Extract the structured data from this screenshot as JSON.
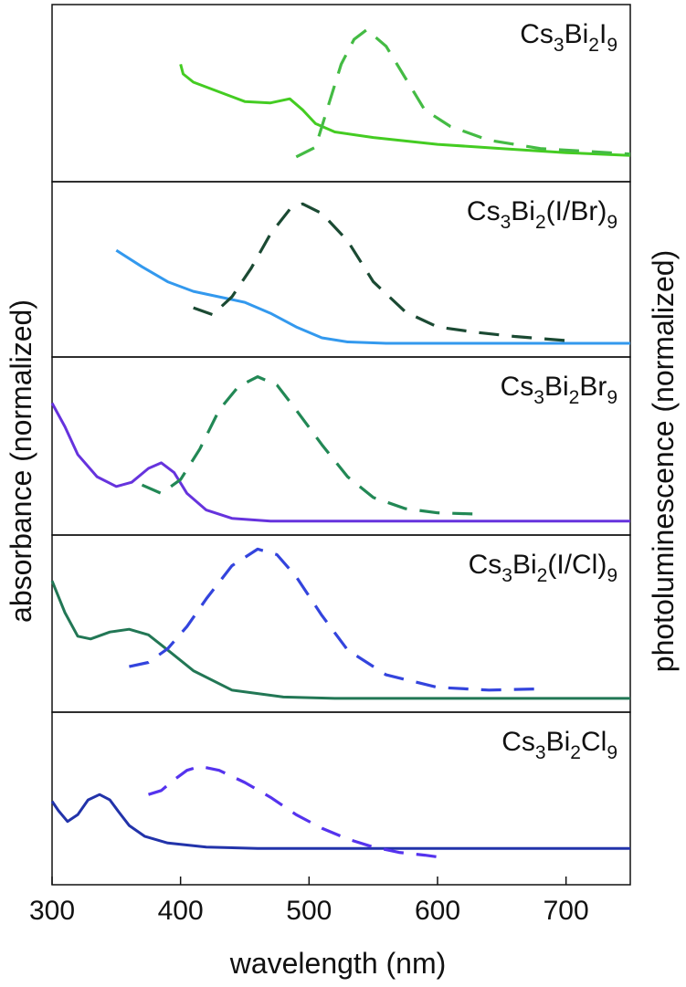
{
  "chart_data": {
    "type": "line",
    "xlabel": "wavelength (nm)",
    "ylabel_left": "absorbance (normalized)",
    "ylabel_right": "photoluminescence (normalized)",
    "xlim": [
      300,
      750
    ],
    "xticks": [
      300,
      400,
      500,
      600,
      700
    ],
    "tick_labels": [
      "300",
      "400",
      "500",
      "600",
      "700"
    ],
    "panels": [
      {
        "label": {
          "base1": "Cs",
          "sub1": "3",
          "base2": "Bi",
          "sub2": "2",
          "base3": "I",
          "sub3": "9",
          "base4": ""
        },
        "absorbance": {
          "color": "#44cc22",
          "x": [
            400,
            402,
            410,
            430,
            450,
            470,
            485,
            495,
            505,
            520,
            550,
            600,
            650,
            700,
            750
          ],
          "y": [
            0.85,
            0.78,
            0.72,
            0.65,
            0.58,
            0.57,
            0.6,
            0.52,
            0.42,
            0.36,
            0.32,
            0.27,
            0.24,
            0.21,
            0.19
          ]
        },
        "pl": {
          "color": "#44bb44",
          "x": [
            490,
            505,
            515,
            525,
            535,
            545,
            560,
            575,
            590,
            610,
            640,
            680,
            750
          ],
          "y": [
            0.18,
            0.25,
            0.55,
            0.85,
            1.03,
            1.1,
            0.98,
            0.75,
            0.52,
            0.4,
            0.3,
            0.24,
            0.2
          ]
        }
      },
      {
        "label": {
          "base1": "Cs",
          "sub1": "3",
          "base2": "Bi",
          "sub2": "2",
          "base3": "(I/Br)",
          "sub3": "9",
          "base4": ""
        },
        "absorbance": {
          "color": "#3399ee",
          "x": [
            350,
            370,
            390,
            410,
            430,
            450,
            470,
            490,
            510,
            530,
            560,
            600,
            650,
            700,
            750
          ],
          "y": [
            0.78,
            0.66,
            0.55,
            0.48,
            0.44,
            0.4,
            0.32,
            0.22,
            0.14,
            0.11,
            0.1,
            0.1,
            0.1,
            0.1,
            0.1
          ]
        },
        "pl": {
          "color": "#1b4a33",
          "x": [
            410,
            425,
            440,
            455,
            470,
            485,
            495,
            510,
            530,
            550,
            575,
            600,
            630,
            660,
            700
          ],
          "y": [
            0.36,
            0.31,
            0.44,
            0.65,
            0.9,
            1.08,
            1.12,
            1.05,
            0.85,
            0.55,
            0.33,
            0.22,
            0.18,
            0.15,
            0.12
          ]
        }
      },
      {
        "label": {
          "base1": "Cs",
          "sub1": "3",
          "base2": "Bi",
          "sub2": "2",
          "base3": "Br",
          "sub3": "9",
          "base4": ""
        },
        "absorbance": {
          "color": "#6633dd",
          "x": [
            300,
            310,
            320,
            335,
            350,
            362,
            375,
            385,
            395,
            405,
            420,
            440,
            470,
            500,
            550,
            600,
            650,
            700,
            750
          ],
          "y": [
            0.95,
            0.78,
            0.58,
            0.42,
            0.35,
            0.38,
            0.48,
            0.52,
            0.45,
            0.3,
            0.18,
            0.12,
            0.1,
            0.1,
            0.1,
            0.1,
            0.1,
            0.1,
            0.1
          ]
        },
        "pl": {
          "color": "#228855",
          "x": [
            370,
            385,
            400,
            415,
            430,
            445,
            460,
            475,
            490,
            510,
            530,
            550,
            575,
            600,
            635
          ],
          "y": [
            0.36,
            0.3,
            0.4,
            0.62,
            0.9,
            1.07,
            1.14,
            1.08,
            0.9,
            0.65,
            0.42,
            0.27,
            0.19,
            0.16,
            0.15
          ]
        }
      },
      {
        "label": {
          "base1": "Cs",
          "sub1": "3",
          "base2": "Bi",
          "sub2": "2",
          "base3": "(I/Cl)",
          "sub3": "9",
          "base4": ""
        },
        "absorbance": {
          "color": "#227755",
          "x": [
            300,
            310,
            320,
            330,
            345,
            360,
            375,
            390,
            410,
            440,
            480,
            520,
            600,
            650,
            700,
            750
          ],
          "y": [
            0.95,
            0.72,
            0.55,
            0.53,
            0.58,
            0.6,
            0.56,
            0.45,
            0.3,
            0.16,
            0.11,
            0.1,
            0.1,
            0.1,
            0.1,
            0.1
          ]
        },
        "pl": {
          "color": "#3344dd",
          "x": [
            360,
            375,
            390,
            405,
            420,
            440,
            460,
            475,
            490,
            510,
            530,
            560,
            600,
            640,
            685
          ],
          "y": [
            0.33,
            0.36,
            0.46,
            0.62,
            0.82,
            1.06,
            1.18,
            1.14,
            0.98,
            0.7,
            0.45,
            0.27,
            0.18,
            0.16,
            0.17
          ]
        }
      },
      {
        "label": {
          "base1": "Cs",
          "sub1": "3",
          "base2": "Bi",
          "sub2": "2",
          "base3": "Cl",
          "sub3": "9",
          "base4": ""
        },
        "absorbance": {
          "color": "#2233aa",
          "x": [
            300,
            305,
            312,
            320,
            328,
            337,
            345,
            352,
            360,
            372,
            390,
            420,
            460,
            500,
            550,
            600,
            650,
            700,
            750
          ],
          "y": [
            0.62,
            0.55,
            0.47,
            0.52,
            0.63,
            0.67,
            0.63,
            0.54,
            0.44,
            0.36,
            0.31,
            0.28,
            0.27,
            0.27,
            0.27,
            0.27,
            0.27,
            0.27,
            0.27
          ]
        },
        "pl": {
          "color": "#5533ee",
          "x": [
            375,
            385,
            395,
            405,
            415,
            430,
            450,
            470,
            490,
            510,
            530,
            550,
            570,
            590,
            605
          ],
          "y": [
            0.67,
            0.7,
            0.78,
            0.85,
            0.88,
            0.85,
            0.76,
            0.65,
            0.52,
            0.42,
            0.34,
            0.28,
            0.24,
            0.22,
            0.2
          ]
        }
      }
    ]
  }
}
